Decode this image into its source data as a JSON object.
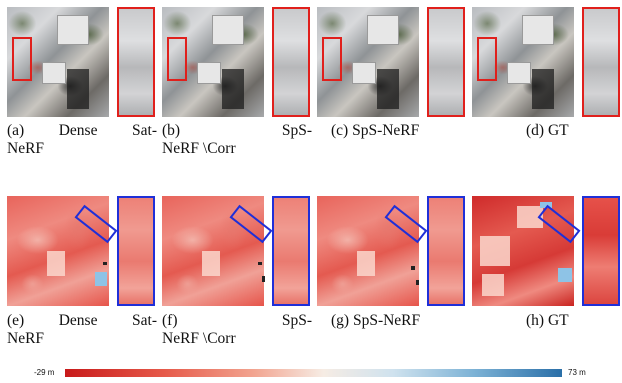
{
  "row1": [
    {
      "id": "a",
      "caption_line1_left": "(a)",
      "caption_line1_mid": "Dense",
      "caption_line1_right": "Sat-",
      "caption_line2": "NeRF"
    },
    {
      "id": "b",
      "caption_line1_left": "(b)",
      "caption_line1_mid": "",
      "caption_line1_right": "SpS-",
      "caption_line2": "NeRF \\Corr"
    },
    {
      "id": "c",
      "caption_line1_left": "(c) SpS-NeRF",
      "caption_line1_mid": "",
      "caption_line1_right": "",
      "caption_line2": ""
    },
    {
      "id": "d",
      "caption_line1_left": "(d) GT",
      "caption_line1_mid": "",
      "caption_line1_right": "",
      "caption_line2": ""
    }
  ],
  "row2": [
    {
      "id": "e",
      "caption_line1_left": "(e)",
      "caption_line1_mid": "Dense",
      "caption_line1_right": "Sat-",
      "caption_line2": "NeRF"
    },
    {
      "id": "f",
      "caption_line1_left": "(f)",
      "caption_line1_mid": "",
      "caption_line1_right": "SpS-",
      "caption_line2": "NeRF \\Corr"
    },
    {
      "id": "g",
      "caption_line1_left": "(g) SpS-NeRF",
      "caption_line1_mid": "",
      "caption_line1_right": "",
      "caption_line2": ""
    },
    {
      "id": "h",
      "caption_line1_left": "(h) GT",
      "caption_line1_mid": "",
      "caption_line1_right": "",
      "caption_line2": ""
    }
  ],
  "colorbar": {
    "min_label": "-29 m",
    "max_label": "73 m",
    "colors": [
      "#c81a1a",
      "#f6ece4",
      "#2a6fa8"
    ]
  },
  "highlight_colors": {
    "row1": "#e0201c",
    "row2": "#1f2fd8"
  }
}
